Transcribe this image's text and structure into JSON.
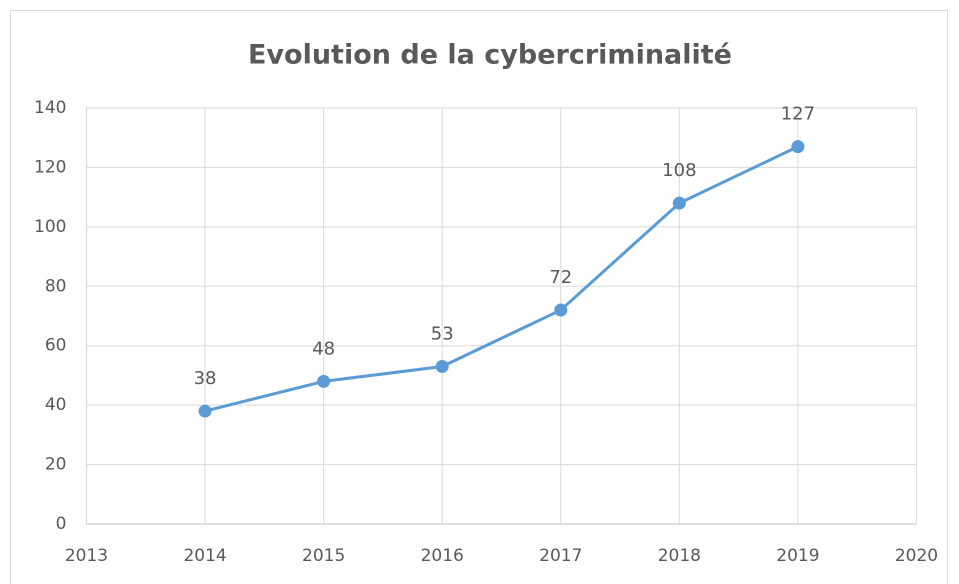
{
  "chart_data": {
    "type": "line",
    "title": "Evolution de la cybercriminalité",
    "x": [
      2014,
      2015,
      2016,
      2017,
      2018,
      2019
    ],
    "values": [
      38,
      48,
      53,
      72,
      108,
      127
    ],
    "color": "#5b9bd5",
    "xlim": [
      2013,
      2020
    ],
    "xticks": [
      2013,
      2014,
      2015,
      2016,
      2017,
      2018,
      2019,
      2020
    ],
    "ylim": [
      0,
      140
    ],
    "yticks": [
      0,
      20,
      40,
      60,
      80,
      100,
      120,
      140
    ],
    "grid": true
  }
}
